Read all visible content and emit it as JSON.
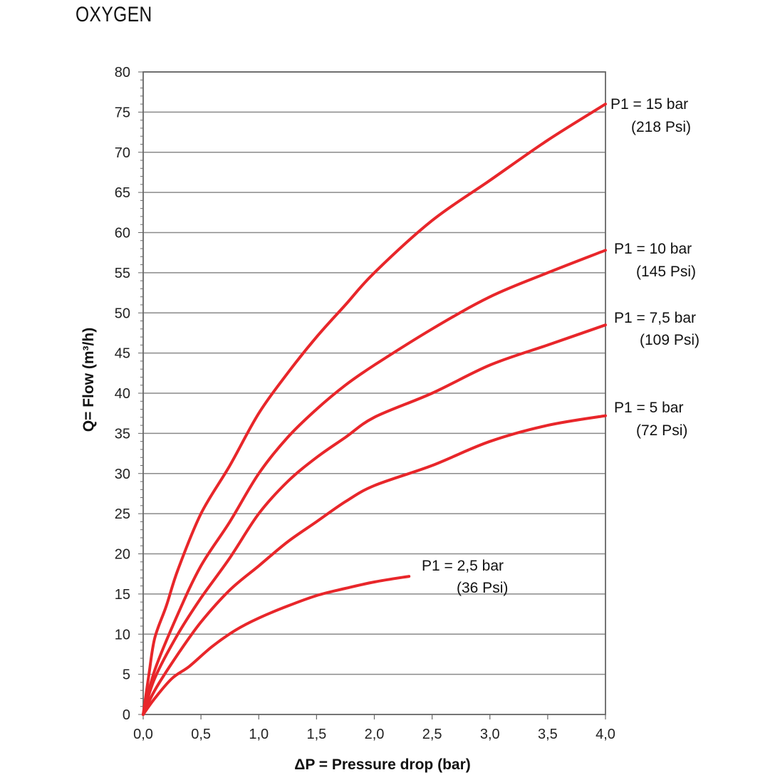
{
  "title": "OXYGEN",
  "chart_data": {
    "type": "line",
    "title": "OXYGEN",
    "xlabel": "ΔP = Pressure drop (bar)",
    "ylabel": "Q= Flow (m³/h)",
    "xlim": [
      0,
      4
    ],
    "ylim": [
      0,
      80
    ],
    "x_ticks": [
      "0,0",
      "0,5",
      "1,0",
      "1,5",
      "2,0",
      "2,5",
      "3,0",
      "3,5",
      "4,0"
    ],
    "y_ticks": [
      "0",
      "5",
      "10",
      "15",
      "20",
      "25",
      "30",
      "35",
      "40",
      "45",
      "50",
      "55",
      "60",
      "65",
      "70",
      "75",
      "80"
    ],
    "grid": "horizontal",
    "colors": {
      "curve": "#e8262a",
      "grid": "#8a8a8a",
      "axis": "#666666"
    },
    "series": [
      {
        "name": "P1 = 15 bar",
        "label_line2": "(218 Psi)",
        "points": [
          [
            0,
            0
          ],
          [
            0.05,
            5
          ],
          [
            0.1,
            9.5
          ],
          [
            0.2,
            13.5
          ],
          [
            0.3,
            18
          ],
          [
            0.5,
            25
          ],
          [
            0.75,
            31
          ],
          [
            1.0,
            37.5
          ],
          [
            1.25,
            42.5
          ],
          [
            1.5,
            47
          ],
          [
            1.75,
            51
          ],
          [
            2.0,
            55
          ],
          [
            2.5,
            61.5
          ],
          [
            3.0,
            66.5
          ],
          [
            3.5,
            71.5
          ],
          [
            4.0,
            76
          ]
        ]
      },
      {
        "name": "P1 = 10 bar",
        "label_line2": "(145 Psi)",
        "points": [
          [
            0,
            0
          ],
          [
            0.1,
            5.5
          ],
          [
            0.3,
            12.5
          ],
          [
            0.5,
            18.5
          ],
          [
            0.75,
            24
          ],
          [
            1.0,
            30
          ],
          [
            1.25,
            34.5
          ],
          [
            1.5,
            38
          ],
          [
            1.75,
            41
          ],
          [
            2.0,
            43.5
          ],
          [
            2.5,
            48
          ],
          [
            3.0,
            52
          ],
          [
            3.5,
            55
          ],
          [
            4.0,
            57.8
          ]
        ]
      },
      {
        "name": "P1 = 7,5 bar",
        "label_line2": "(109 Psi)",
        "points": [
          [
            0,
            0
          ],
          [
            0.1,
            4.5
          ],
          [
            0.3,
            10
          ],
          [
            0.5,
            14.5
          ],
          [
            0.75,
            19.5
          ],
          [
            1.0,
            25
          ],
          [
            1.25,
            29
          ],
          [
            1.5,
            32
          ],
          [
            1.75,
            34.5
          ],
          [
            2.0,
            37
          ],
          [
            2.5,
            40
          ],
          [
            3.0,
            43.5
          ],
          [
            3.5,
            46
          ],
          [
            4.0,
            48.5
          ]
        ]
      },
      {
        "name": "P1 = 5 bar",
        "label_line2": "(72 Psi)",
        "points": [
          [
            0,
            0
          ],
          [
            0.1,
            3
          ],
          [
            0.3,
            7.5
          ],
          [
            0.5,
            11.5
          ],
          [
            0.75,
            15.5
          ],
          [
            1.0,
            18.5
          ],
          [
            1.25,
            21.5
          ],
          [
            1.5,
            24
          ],
          [
            1.75,
            26.5
          ],
          [
            2.0,
            28.5
          ],
          [
            2.5,
            31
          ],
          [
            3.0,
            34
          ],
          [
            3.5,
            36
          ],
          [
            4.0,
            37.2
          ]
        ]
      },
      {
        "name": "P1 = 2,5 bar",
        "label_line2": "(36 Psi)",
        "points": [
          [
            0,
            0
          ],
          [
            0.1,
            2
          ],
          [
            0.25,
            4.5
          ],
          [
            0.4,
            6
          ],
          [
            0.6,
            8.5
          ],
          [
            0.8,
            10.5
          ],
          [
            1.0,
            12
          ],
          [
            1.25,
            13.5
          ],
          [
            1.5,
            14.8
          ],
          [
            1.75,
            15.7
          ],
          [
            2.0,
            16.5
          ],
          [
            2.3,
            17.2
          ]
        ]
      }
    ]
  }
}
